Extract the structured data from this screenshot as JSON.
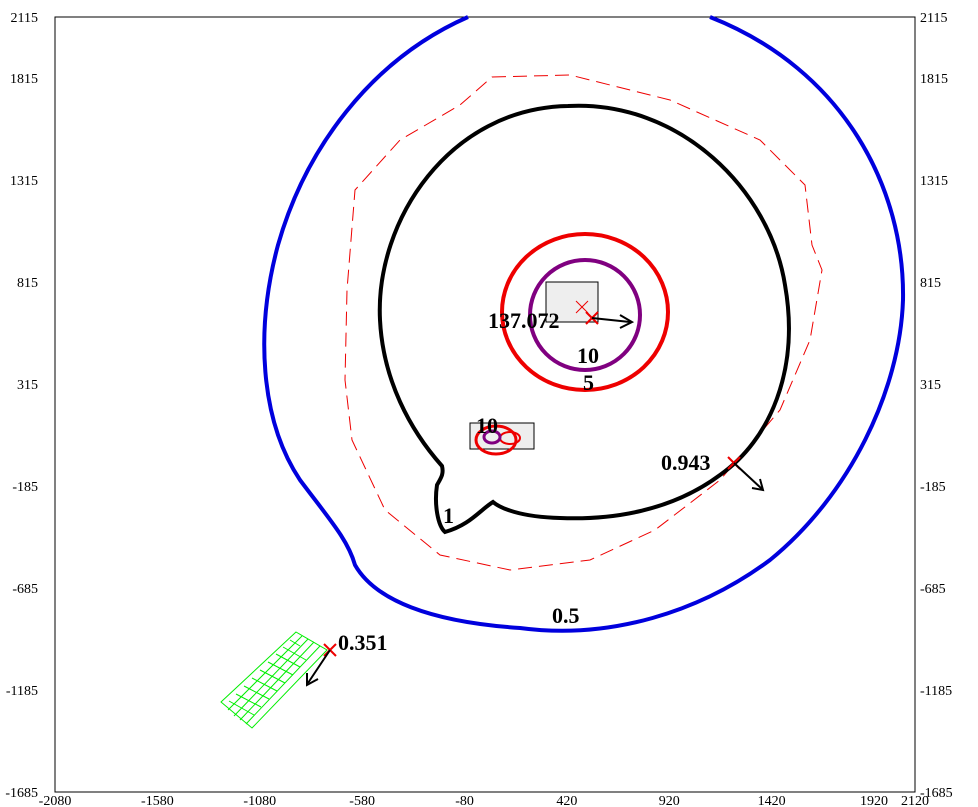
{
  "chart_data": {
    "type": "contour",
    "xlim": [
      -2080,
      2120
    ],
    "ylim": [
      -1685,
      2115
    ],
    "x_ticks": [
      "-2080",
      "-1580",
      "-1080",
      "-580",
      "-80",
      "420",
      "920",
      "1420",
      "1920",
      "2120"
    ],
    "y_ticks": [
      "2115",
      "1815",
      "1315",
      "815",
      "315",
      "-185",
      "-685",
      "-1185",
      "-1685"
    ],
    "contours": [
      {
        "level": "0.5",
        "color": "#0000dd",
        "style": "solid",
        "label_pos": [
          470,
          -885
        ]
      },
      {
        "level": "1",
        "color": "#000000",
        "style": "solid",
        "label_pos": [
          -160,
          -485
        ]
      },
      {
        "level": "5",
        "color": "#ee0000",
        "style": "solid",
        "label_pos": [
          470,
          335
        ]
      },
      {
        "level": "10",
        "color": "#800080",
        "style": "solid",
        "label_pos": [
          470,
          455
        ]
      },
      {
        "level": "10",
        "color": "#800080",
        "style": "solid",
        "label_pos": [
          -80,
          75
        ]
      },
      {
        "level": "",
        "color": "#ee0000",
        "style": "dashed"
      }
    ],
    "receptors": [
      {
        "value": "137.072",
        "x": 500,
        "y": 695
      },
      {
        "value": "0.943",
        "x": 1260,
        "y": -75
      },
      {
        "value": "0.351",
        "x": -780,
        "y": -1075
      }
    ],
    "sources": [
      {
        "type": "building",
        "x1": 220,
        "y1": 665,
        "x2": 490,
        "y2": 865
      },
      {
        "type": "building",
        "x1": -80,
        "y1": -30,
        "x2": 250,
        "y2": 110
      },
      {
        "type": "area",
        "color": "#00ee00"
      }
    ]
  }
}
